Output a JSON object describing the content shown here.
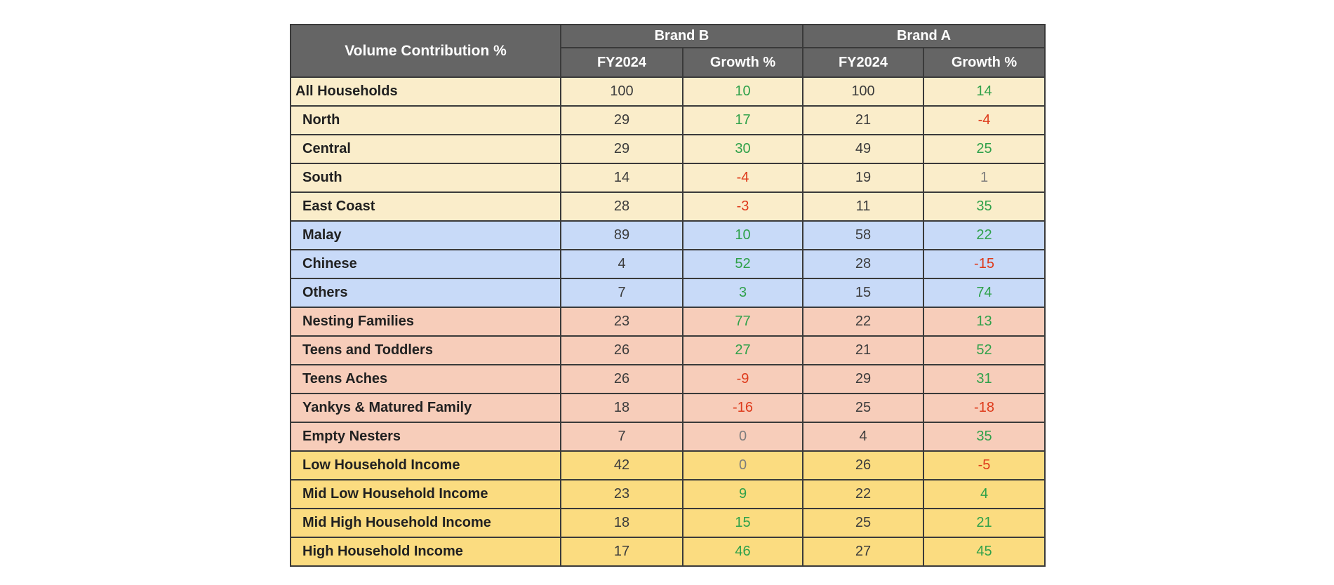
{
  "table": {
    "title": "Volume Contribution %",
    "brand_groups": [
      "Brand B",
      "Brand A"
    ],
    "sub_headers": [
      "FY2024",
      "Growth %",
      "FY2024",
      "Growth %"
    ],
    "rows": [
      {
        "label": "All Households",
        "group": "region",
        "indent": false,
        "cells": [
          {
            "v": "100",
            "tone": "dark"
          },
          {
            "v": "10",
            "tone": "green"
          },
          {
            "v": "100",
            "tone": "dark"
          },
          {
            "v": "14",
            "tone": "green"
          }
        ]
      },
      {
        "label": "North",
        "group": "region",
        "indent": true,
        "cells": [
          {
            "v": "29",
            "tone": "dark"
          },
          {
            "v": "17",
            "tone": "green"
          },
          {
            "v": "21",
            "tone": "dark"
          },
          {
            "v": "-4",
            "tone": "red"
          }
        ]
      },
      {
        "label": "Central",
        "group": "region",
        "indent": true,
        "cells": [
          {
            "v": "29",
            "tone": "dark"
          },
          {
            "v": "30",
            "tone": "green"
          },
          {
            "v": "49",
            "tone": "dark"
          },
          {
            "v": "25",
            "tone": "green"
          }
        ]
      },
      {
        "label": "South",
        "group": "region",
        "indent": true,
        "cells": [
          {
            "v": "14",
            "tone": "dark"
          },
          {
            "v": "-4",
            "tone": "red"
          },
          {
            "v": "19",
            "tone": "dark"
          },
          {
            "v": "1",
            "tone": "gray"
          }
        ]
      },
      {
        "label": "East Coast",
        "group": "region",
        "indent": true,
        "cells": [
          {
            "v": "28",
            "tone": "dark"
          },
          {
            "v": "-3",
            "tone": "red"
          },
          {
            "v": "11",
            "tone": "dark"
          },
          {
            "v": "35",
            "tone": "green"
          }
        ]
      },
      {
        "label": "Malay",
        "group": "ethnicity",
        "indent": true,
        "cells": [
          {
            "v": "89",
            "tone": "dark"
          },
          {
            "v": "10",
            "tone": "green"
          },
          {
            "v": "58",
            "tone": "dark"
          },
          {
            "v": "22",
            "tone": "green"
          }
        ]
      },
      {
        "label": "Chinese",
        "group": "ethnicity",
        "indent": true,
        "cells": [
          {
            "v": "4",
            "tone": "dark"
          },
          {
            "v": "52",
            "tone": "green"
          },
          {
            "v": "28",
            "tone": "dark"
          },
          {
            "v": "-15",
            "tone": "red"
          }
        ]
      },
      {
        "label": "Others",
        "group": "ethnicity",
        "indent": true,
        "cells": [
          {
            "v": "7",
            "tone": "dark"
          },
          {
            "v": "3",
            "tone": "green"
          },
          {
            "v": "15",
            "tone": "dark"
          },
          {
            "v": "74",
            "tone": "green"
          }
        ]
      },
      {
        "label": "Nesting Families",
        "group": "lifestage",
        "indent": true,
        "cells": [
          {
            "v": "23",
            "tone": "dark"
          },
          {
            "v": "77",
            "tone": "green"
          },
          {
            "v": "22",
            "tone": "dark"
          },
          {
            "v": "13",
            "tone": "green"
          }
        ]
      },
      {
        "label": "Teens and Toddlers",
        "group": "lifestage",
        "indent": true,
        "cells": [
          {
            "v": "26",
            "tone": "dark"
          },
          {
            "v": "27",
            "tone": "green"
          },
          {
            "v": "21",
            "tone": "dark"
          },
          {
            "v": "52",
            "tone": "green"
          }
        ]
      },
      {
        "label": "Teens Aches",
        "group": "lifestage",
        "indent": true,
        "cells": [
          {
            "v": "26",
            "tone": "dark"
          },
          {
            "v": "-9",
            "tone": "red"
          },
          {
            "v": "29",
            "tone": "dark"
          },
          {
            "v": "31",
            "tone": "green"
          }
        ]
      },
      {
        "label": "Yankys & Matured Family",
        "group": "lifestage",
        "indent": true,
        "cells": [
          {
            "v": "18",
            "tone": "dark"
          },
          {
            "v": "-16",
            "tone": "red"
          },
          {
            "v": "25",
            "tone": "dark"
          },
          {
            "v": "-18",
            "tone": "red"
          }
        ]
      },
      {
        "label": "Empty Nesters",
        "group": "lifestage",
        "indent": true,
        "cells": [
          {
            "v": "7",
            "tone": "dark"
          },
          {
            "v": "0",
            "tone": "gray"
          },
          {
            "v": "4",
            "tone": "dark"
          },
          {
            "v": "35",
            "tone": "green"
          }
        ]
      },
      {
        "label": "Low Household Income",
        "group": "income",
        "indent": true,
        "cells": [
          {
            "v": "42",
            "tone": "dark"
          },
          {
            "v": "0",
            "tone": "gray"
          },
          {
            "v": "26",
            "tone": "dark"
          },
          {
            "v": "-5",
            "tone": "red"
          }
        ]
      },
      {
        "label": "Mid Low Household Income",
        "group": "income",
        "indent": true,
        "cells": [
          {
            "v": "23",
            "tone": "dark"
          },
          {
            "v": "9",
            "tone": "green"
          },
          {
            "v": "22",
            "tone": "dark"
          },
          {
            "v": "4",
            "tone": "green"
          }
        ]
      },
      {
        "label": "Mid High Household Income",
        "group": "income",
        "indent": true,
        "cells": [
          {
            "v": "18",
            "tone": "dark"
          },
          {
            "v": "15",
            "tone": "green"
          },
          {
            "v": "25",
            "tone": "dark"
          },
          {
            "v": "21",
            "tone": "green"
          }
        ]
      },
      {
        "label": "High Household Income",
        "group": "income",
        "indent": true,
        "cells": [
          {
            "v": "17",
            "tone": "dark"
          },
          {
            "v": "46",
            "tone": "green"
          },
          {
            "v": "27",
            "tone": "dark"
          },
          {
            "v": "45",
            "tone": "green"
          }
        ]
      }
    ]
  },
  "colors": {
    "header_background": "#656565",
    "header_text": "#ffffff",
    "border": "#3a3a3a",
    "group_region": "#faedca",
    "group_ethnicity": "#c8daf8",
    "group_lifestage": "#f7cdba",
    "group_income": "#fbdc80",
    "value_text": "#3c3c3c",
    "label_text": "#212121",
    "positive_growth": "#2fa14a",
    "negative_growth": "#de3a1b",
    "neutral_growth": "#7c7c7c"
  },
  "chart_data": {
    "type": "table",
    "title": "Volume Contribution %",
    "column_groups": [
      {
        "label": "Brand B",
        "span": 2
      },
      {
        "label": "Brand A",
        "span": 2
      }
    ],
    "columns": [
      "Volume Contribution %",
      "Brand B FY2024",
      "Brand B Growth %",
      "Brand A FY2024",
      "Brand A Growth %"
    ],
    "rows": [
      [
        "All Households",
        100,
        10,
        100,
        14
      ],
      [
        "North",
        29,
        17,
        21,
        -4
      ],
      [
        "Central",
        29,
        30,
        49,
        25
      ],
      [
        "South",
        14,
        -4,
        19,
        1
      ],
      [
        "East Coast",
        28,
        -3,
        11,
        35
      ],
      [
        "Malay",
        89,
        10,
        58,
        22
      ],
      [
        "Chinese",
        4,
        52,
        28,
        -15
      ],
      [
        "Others",
        7,
        3,
        15,
        74
      ],
      [
        "Nesting Families",
        23,
        77,
        22,
        13
      ],
      [
        "Teens and Toddlers",
        26,
        27,
        21,
        52
      ],
      [
        "Teens Aches",
        26,
        -9,
        29,
        31
      ],
      [
        "Yankys & Matured Family",
        18,
        -16,
        25,
        -18
      ],
      [
        "Empty Nesters",
        7,
        0,
        4,
        35
      ],
      [
        "Low Household Income",
        42,
        0,
        26,
        -5
      ],
      [
        "Mid Low Household Income",
        23,
        9,
        22,
        4
      ],
      [
        "Mid High Household Income",
        18,
        15,
        25,
        21
      ],
      [
        "High Household Income",
        17,
        46,
        27,
        45
      ]
    ]
  }
}
